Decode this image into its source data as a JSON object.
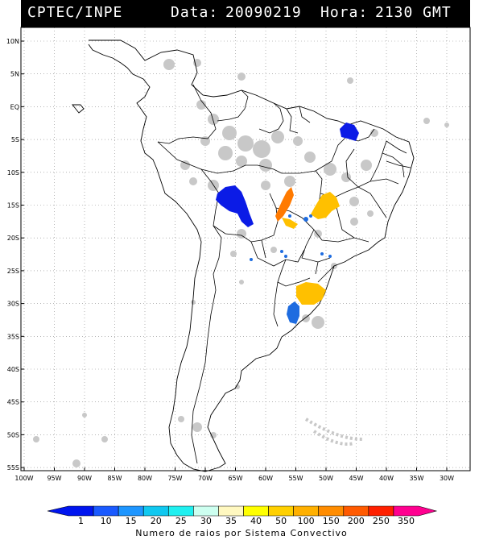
{
  "header": {
    "agency": "CPTEC/INPE",
    "date_label": "Data:",
    "date": "20090219",
    "hour_label": "Hora:",
    "hour": "2130 GMT"
  },
  "axes": {
    "lat_labels": [
      "10N",
      "5N",
      "EQ",
      "5S",
      "10S",
      "15S",
      "20S",
      "25S",
      "30S",
      "35S",
      "40S",
      "45S",
      "50S",
      "55S"
    ],
    "lon_labels": [
      "100W",
      "95W",
      "90W",
      "85W",
      "80W",
      "75W",
      "70W",
      "65W",
      "60W",
      "55W",
      "50W",
      "45W",
      "40W",
      "35W",
      "30W"
    ]
  },
  "legend": {
    "title": "Numero de raios por Sistema Convectivo",
    "ticks": [
      "1",
      "10",
      "15",
      "20",
      "25",
      "30",
      "35",
      "40",
      "50",
      "100",
      "150",
      "200",
      "250",
      "350"
    ],
    "colors": [
      "#0015ef",
      "#1a5aff",
      "#1e96ff",
      "#10c8f0",
      "#20f0f0",
      "#cdfff0",
      "#fff8c0",
      "#ffff00",
      "#ffd000",
      "#ffb000",
      "#ff8c00",
      "#ff5a00",
      "#ff2000",
      "#ff0090"
    ]
  },
  "storm_colors": {
    "cloud": "#c8c8c8",
    "blue": "#0b1be6",
    "light_blue": "#1e6ce0",
    "orange": "#ff7a00",
    "yellow_orange": "#ffc000"
  }
}
